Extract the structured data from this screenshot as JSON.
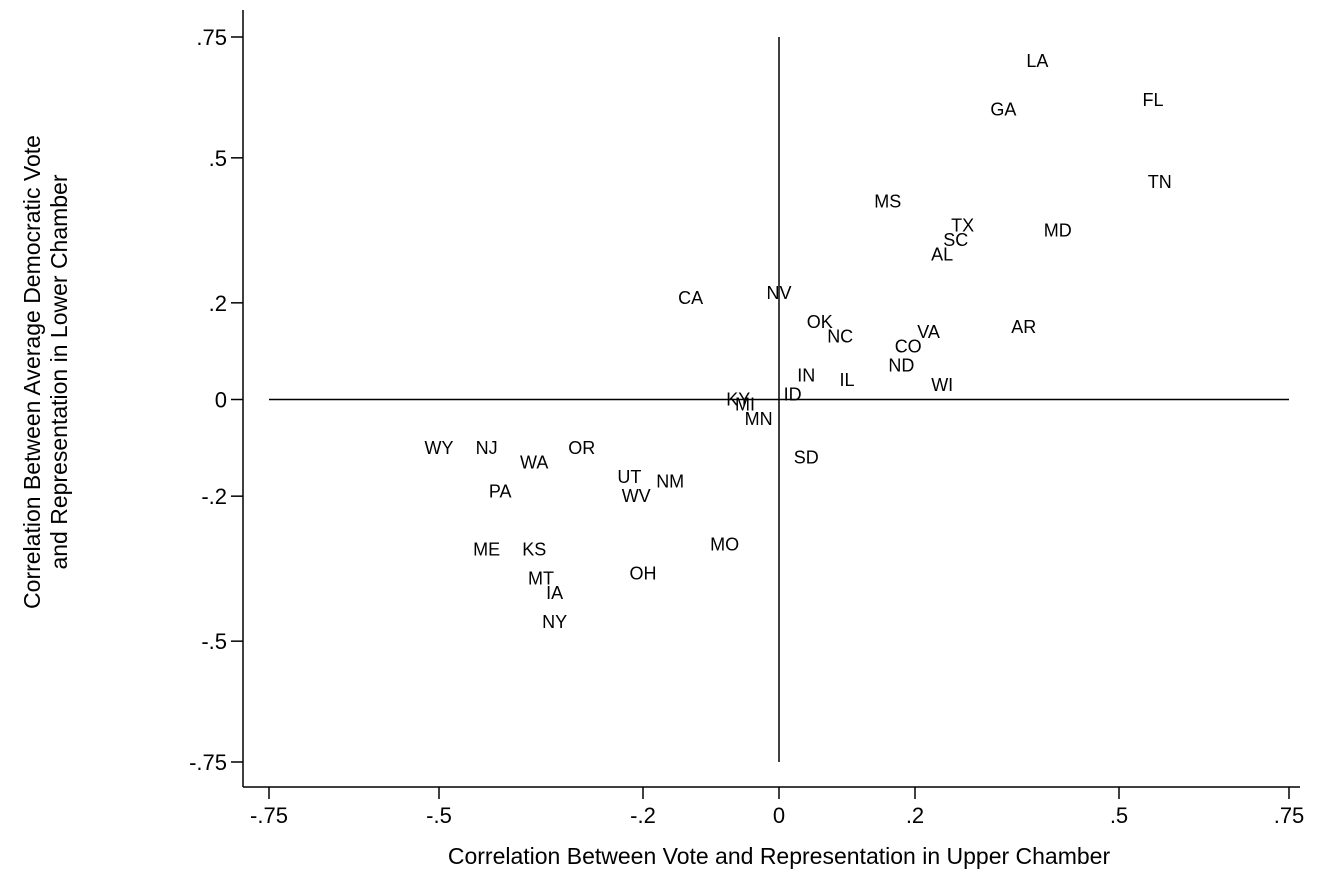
{
  "chart_data": {
    "type": "scatter",
    "xlabel": "Correlation Between Vote and Representation in Upper Chamber",
    "ylabel_lines": [
      "Correlation Between Average Democratic Vote",
      "and Representation in Lower Chamber"
    ],
    "xlim": [
      -0.75,
      0.75
    ],
    "ylim": [
      -0.75,
      0.75
    ],
    "x_ticks": [
      {
        "value": -0.75,
        "label": "-.75"
      },
      {
        "value": -0.5,
        "label": "-.5"
      },
      {
        "value": -0.2,
        "label": "-.2"
      },
      {
        "value": 0,
        "label": "0"
      },
      {
        "value": 0.2,
        "label": ".2"
      },
      {
        "value": 0.5,
        "label": ".5"
      },
      {
        "value": 0.75,
        "label": ".75"
      }
    ],
    "y_ticks": [
      {
        "value": 0.75,
        "label": ".75"
      },
      {
        "value": 0.5,
        "label": ".5"
      },
      {
        "value": 0.2,
        "label": ".2"
      },
      {
        "value": 0,
        "label": "0"
      },
      {
        "value": -0.2,
        "label": "-.2"
      },
      {
        "value": -0.5,
        "label": "-.5"
      },
      {
        "value": -0.75,
        "label": "-.75"
      }
    ],
    "reference_lines": {
      "x": 0,
      "y": 0
    },
    "grid": false,
    "points": [
      {
        "label": "LA",
        "x": 0.38,
        "y": 0.7
      },
      {
        "label": "FL",
        "x": 0.55,
        "y": 0.62
      },
      {
        "label": "GA",
        "x": 0.33,
        "y": 0.6
      },
      {
        "label": "TN",
        "x": 0.56,
        "y": 0.45
      },
      {
        "label": "MS",
        "x": 0.16,
        "y": 0.41
      },
      {
        "label": "TX",
        "x": 0.27,
        "y": 0.36
      },
      {
        "label": "MD",
        "x": 0.41,
        "y": 0.35
      },
      {
        "label": "SC",
        "x": 0.26,
        "y": 0.33
      },
      {
        "label": "AL",
        "x": 0.24,
        "y": 0.3
      },
      {
        "label": "CA",
        "x": -0.13,
        "y": 0.21
      },
      {
        "label": "NV",
        "x": 0.0,
        "y": 0.22
      },
      {
        "label": "OK",
        "x": 0.06,
        "y": 0.16
      },
      {
        "label": "AR",
        "x": 0.36,
        "y": 0.15
      },
      {
        "label": "NC",
        "x": 0.09,
        "y": 0.13
      },
      {
        "label": "VA",
        "x": 0.22,
        "y": 0.14
      },
      {
        "label": "CO",
        "x": 0.19,
        "y": 0.11
      },
      {
        "label": "ND",
        "x": 0.18,
        "y": 0.07
      },
      {
        "label": "IN",
        "x": 0.04,
        "y": 0.05
      },
      {
        "label": "IL",
        "x": 0.1,
        "y": 0.04
      },
      {
        "label": "WI",
        "x": 0.24,
        "y": 0.03
      },
      {
        "label": "ID",
        "x": 0.02,
        "y": 0.01
      },
      {
        "label": "KY",
        "x": -0.06,
        "y": 0.0
      },
      {
        "label": "MI",
        "x": -0.05,
        "y": -0.01
      },
      {
        "label": "MN",
        "x": -0.03,
        "y": -0.04
      },
      {
        "label": "WY",
        "x": -0.5,
        "y": -0.1
      },
      {
        "label": "NJ",
        "x": -0.43,
        "y": -0.1
      },
      {
        "label": "OR",
        "x": -0.29,
        "y": -0.1
      },
      {
        "label": "WA",
        "x": -0.36,
        "y": -0.13
      },
      {
        "label": "SD",
        "x": 0.04,
        "y": -0.12
      },
      {
        "label": "UT",
        "x": -0.22,
        "y": -0.16
      },
      {
        "label": "NM",
        "x": -0.16,
        "y": -0.17
      },
      {
        "label": "PA",
        "x": -0.41,
        "y": -0.19
      },
      {
        "label": "WV",
        "x": -0.21,
        "y": -0.2
      },
      {
        "label": "MO",
        "x": -0.08,
        "y": -0.3
      },
      {
        "label": "ME",
        "x": -0.43,
        "y": -0.31
      },
      {
        "label": "KS",
        "x": -0.36,
        "y": -0.31
      },
      {
        "label": "OH",
        "x": -0.2,
        "y": -0.36
      },
      {
        "label": "MT",
        "x": -0.35,
        "y": -0.37
      },
      {
        "label": "IA",
        "x": -0.33,
        "y": -0.4
      },
      {
        "label": "NY",
        "x": -0.33,
        "y": -0.46
      }
    ]
  }
}
